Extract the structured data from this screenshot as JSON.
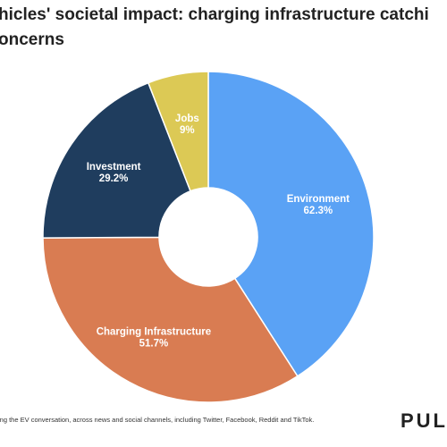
{
  "chart_data": {
    "type": "donut",
    "title": [
      "hicles' societal impact: charging infrastructure catchi",
      "oncerns"
    ],
    "categories": [
      "Environment",
      "Charging Infrastructure",
      "Investment",
      "Jobs"
    ],
    "values": [
      62.3,
      51.7,
      29.2,
      9
    ],
    "value_labels": [
      "62.3%",
      "51.7%",
      "29.2%",
      "9%"
    ],
    "colors": [
      "#5aa2f5",
      "#d97c52",
      "#1f3d5e",
      "#dcc955"
    ],
    "footnote": "ing the EV conversation, across news and social channels, including Twitter, Facebook, Reddit and TikTok.",
    "logo": "PUL"
  }
}
